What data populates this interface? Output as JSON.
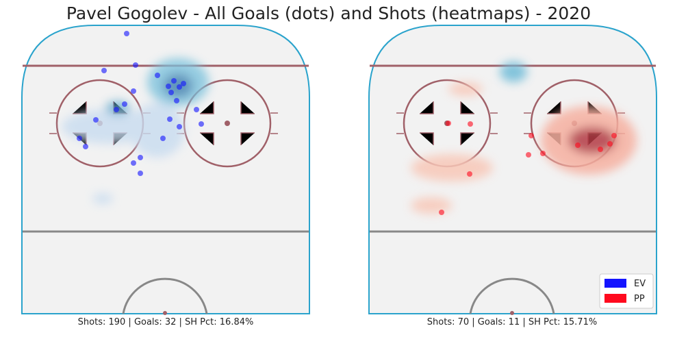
{
  "title": "Pavel Gogolev - All Goals (dots) and Shots (heatmaps) - 2020",
  "panels": [
    {
      "caption": "Shots: 190 | Goals: 32 | SH Pct: 16.84%"
    },
    {
      "caption": "Shots: 70 | Goals: 11 | SH Pct: 15.71%"
    }
  ],
  "legend": [
    {
      "name": "EV",
      "color": "#1414ff"
    },
    {
      "name": "PP",
      "color": "#ff0a1e"
    }
  ]
}
